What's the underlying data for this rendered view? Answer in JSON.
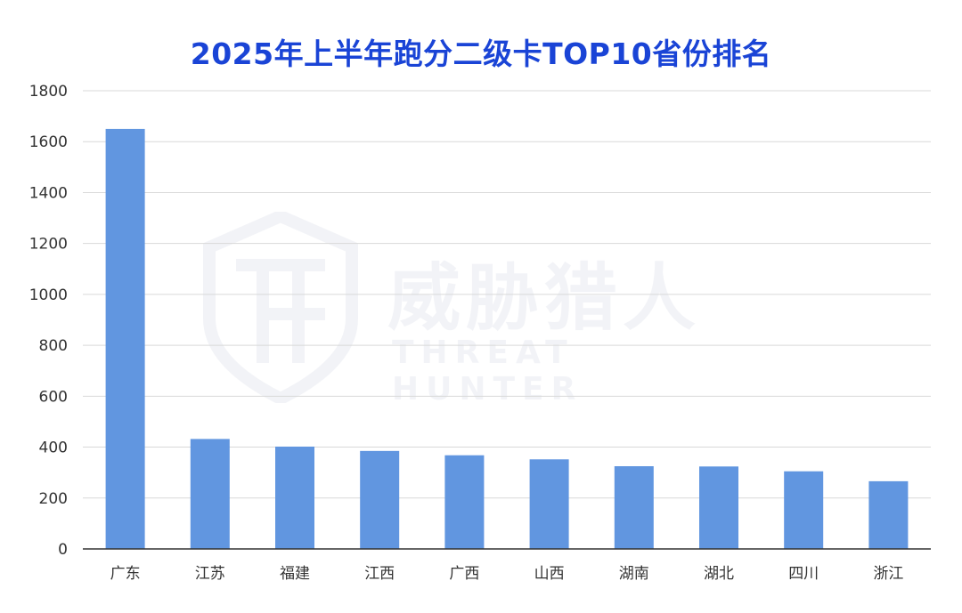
{
  "chart_data": {
    "type": "bar",
    "title": "2025年上半年跑分二级卡TOP10省份排名",
    "categories": [
      "广东",
      "江苏",
      "福建",
      "江西",
      "广西",
      "山西",
      "湖南",
      "湖北",
      "四川",
      "浙江"
    ],
    "values": [
      1650,
      432,
      402,
      385,
      368,
      352,
      325,
      324,
      305,
      266
    ],
    "ylim": [
      0,
      1800
    ],
    "yticks": [
      0,
      200,
      400,
      600,
      800,
      1000,
      1200,
      1400,
      1600,
      1800
    ],
    "xlabel": "",
    "ylabel": "",
    "grid": true,
    "bar_color": "#6196e0",
    "title_color": "#1a44d6"
  },
  "watermark": {
    "cn": "威胁猎人",
    "en": "THREAT HUNTER"
  }
}
